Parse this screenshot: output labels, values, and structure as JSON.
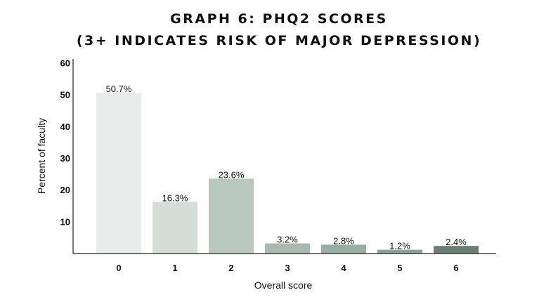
{
  "chart_data": {
    "type": "bar",
    "title": "GRAPH 6: PHQ2 SCORES",
    "subtitle": "(3+ INDICATES RISK OF MAJOR DEPRESSION)",
    "xlabel": "Overall score",
    "ylabel": "Percent of faculty",
    "categories": [
      "0",
      "1",
      "2",
      "3",
      "4",
      "5",
      "6"
    ],
    "values": [
      50.7,
      16.3,
      23.6,
      3.2,
      2.8,
      1.2,
      2.4
    ],
    "value_labels": [
      "50.7%",
      "16.3%",
      "23.6%",
      "3.2%",
      "2.8%",
      "1.2%",
      "2.4%"
    ],
    "bar_colors": [
      "#e9ecea",
      "#d5ddd9",
      "#b8c8c1",
      "#a8b9b1",
      "#98ada4",
      "#8aa298",
      "#6a7f73"
    ],
    "yticks": [
      10,
      20,
      30,
      40,
      50,
      60
    ],
    "ylim": [
      0,
      60
    ],
    "grid": false,
    "legend": "none"
  }
}
